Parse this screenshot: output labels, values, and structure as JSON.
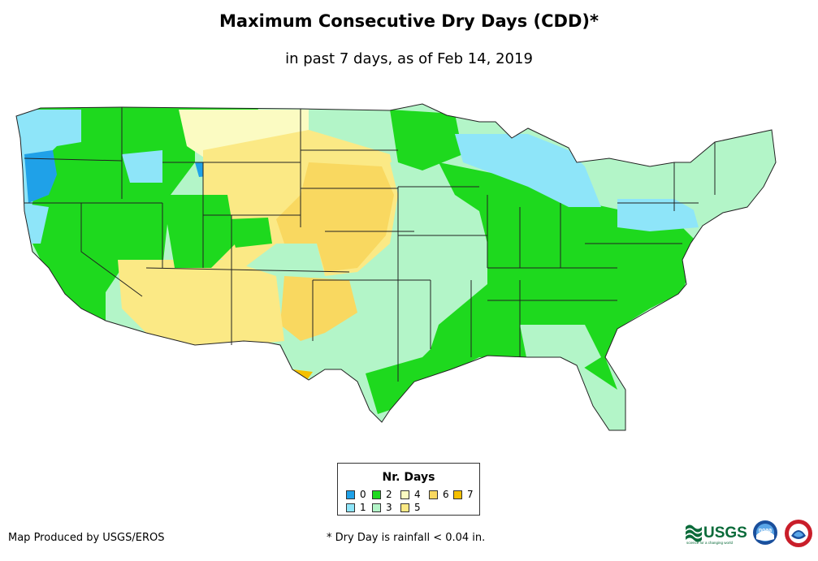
{
  "header": {
    "title": "Maximum Consecutive Dry Days (CDD)*",
    "subtitle": "in past 7 days, as of Feb 14, 2019"
  },
  "legend": {
    "title": "Nr. Days",
    "items": [
      {
        "label": "0",
        "color": "#1fa1e8"
      },
      {
        "label": "1",
        "color": "#8ee5f9"
      },
      {
        "label": "2",
        "color": "#1ed91e"
      },
      {
        "label": "3",
        "color": "#b3f5c8"
      },
      {
        "label": "4",
        "color": "#fbfbc2"
      },
      {
        "label": "5",
        "color": "#fbe985"
      },
      {
        "label": "6",
        "color": "#f9d860"
      },
      {
        "label": "7",
        "color": "#f5c000"
      }
    ]
  },
  "footer": {
    "credit": "Map Produced by USGS/EROS",
    "footnote": "* Dry Day is rainfall < 0.04 in."
  },
  "logos": {
    "usgs_text": "USGS",
    "usgs_tagline": "science for a changing world",
    "noaa_text": "noaa"
  },
  "map": {
    "water_color": "#ffffff",
    "border_color": "#222222",
    "regions": [
      {
        "name": "Pacific Northwest coast",
        "days": "0"
      },
      {
        "name": "Northern Plains",
        "days": "5"
      },
      {
        "name": "Central Plains",
        "days": "6"
      },
      {
        "name": "Southwest",
        "days": "5"
      },
      {
        "name": "Texas",
        "days": "3"
      },
      {
        "name": "Ohio Valley and Southeast",
        "days": "2"
      },
      {
        "name": "Great Lakes",
        "days": "1"
      },
      {
        "name": "New England",
        "days": "3"
      },
      {
        "name": "Mid-Atlantic",
        "days": "2"
      }
    ]
  }
}
